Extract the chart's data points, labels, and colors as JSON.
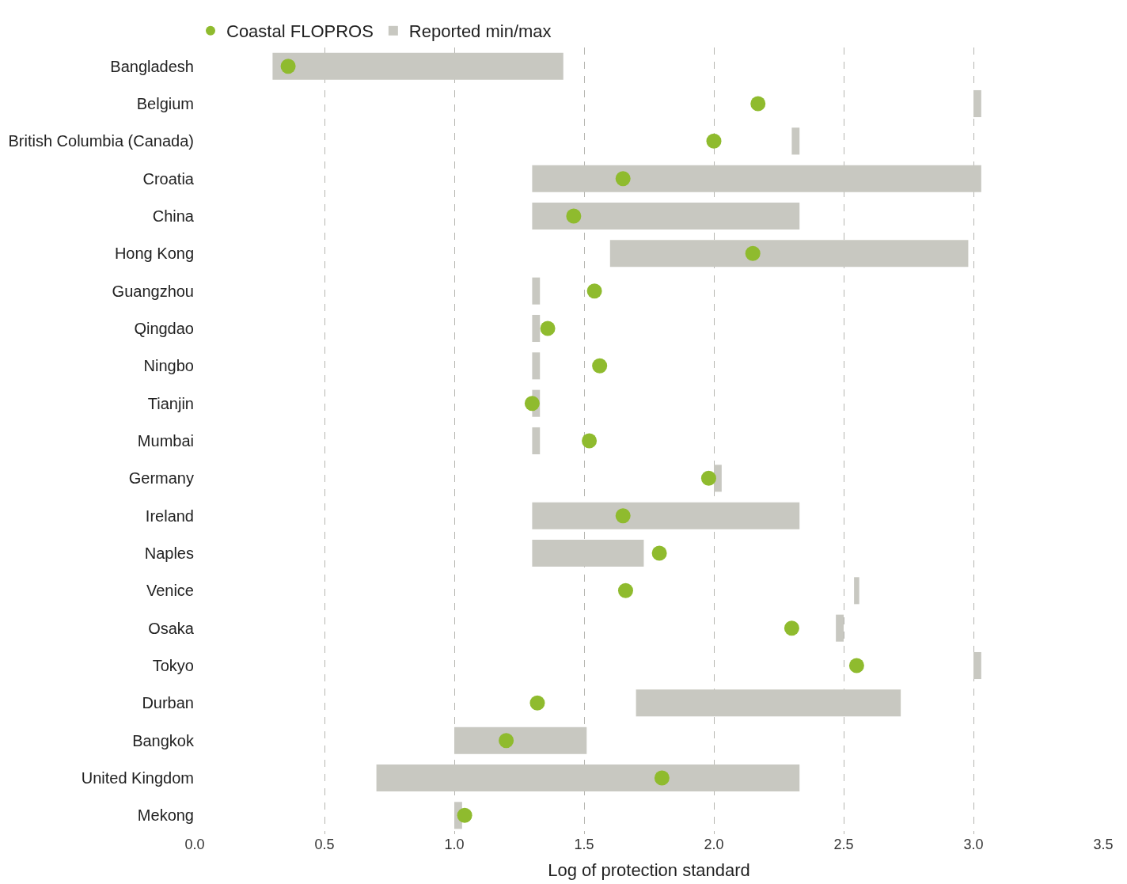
{
  "chart_data": {
    "type": "bar",
    "orientation": "horizontal",
    "xlabel": "Log of protection standard",
    "categories": [
      "Bangladesh",
      "Belgium",
      "British Columbia (Canada)",
      "Croatia",
      "China",
      "Hong Kong",
      "Guangzhou",
      "Qingdao",
      "Ningbo",
      "Tianjin",
      "Mumbai",
      "Germany",
      "Ireland",
      "Naples",
      "Venice",
      "Osaka",
      "Tokyo",
      "Durban",
      "Bangkok",
      "United Kingdom",
      "Mekong"
    ],
    "series": [
      {
        "name": "Coastal FLOPROS",
        "type": "scatter",
        "marker": "circle",
        "color": "#8fbb2e",
        "values": [
          0.36,
          2.17,
          2.0,
          1.65,
          1.46,
          2.15,
          1.54,
          1.36,
          1.56,
          1.3,
          1.52,
          1.98,
          1.65,
          1.79,
          1.66,
          2.3,
          2.55,
          1.32,
          1.2,
          1.8,
          1.04
        ]
      },
      {
        "name": "Reported min/max",
        "color": "#c8c8c1",
        "base": [
          0.3,
          3.0,
          2.3,
          1.3,
          1.3,
          1.6,
          1.3,
          1.3,
          1.3,
          1.3,
          1.3,
          2.0,
          1.3,
          1.3,
          2.54,
          2.47,
          3.0,
          1.7,
          1.0,
          0.7,
          1.0
        ],
        "values": [
          1.12,
          0.03,
          0.03,
          1.73,
          1.03,
          1.38,
          0.03,
          0.03,
          0.03,
          0.03,
          0.03,
          0.03,
          1.03,
          0.43,
          0.02,
          0.03,
          0.03,
          1.02,
          0.51,
          1.63,
          0.03
        ]
      }
    ],
    "xlim": [
      0,
      3.5
    ],
    "xticks": [
      {
        "value": 0,
        "label": "0.0"
      },
      0.5,
      {
        "value": 1,
        "label": "1.0"
      },
      1.5,
      {
        "value": 2,
        "label": "2.0"
      },
      2.5,
      {
        "value": 3,
        "label": "3.0"
      },
      3.5
    ],
    "grid": "x",
    "legend": "top left"
  }
}
